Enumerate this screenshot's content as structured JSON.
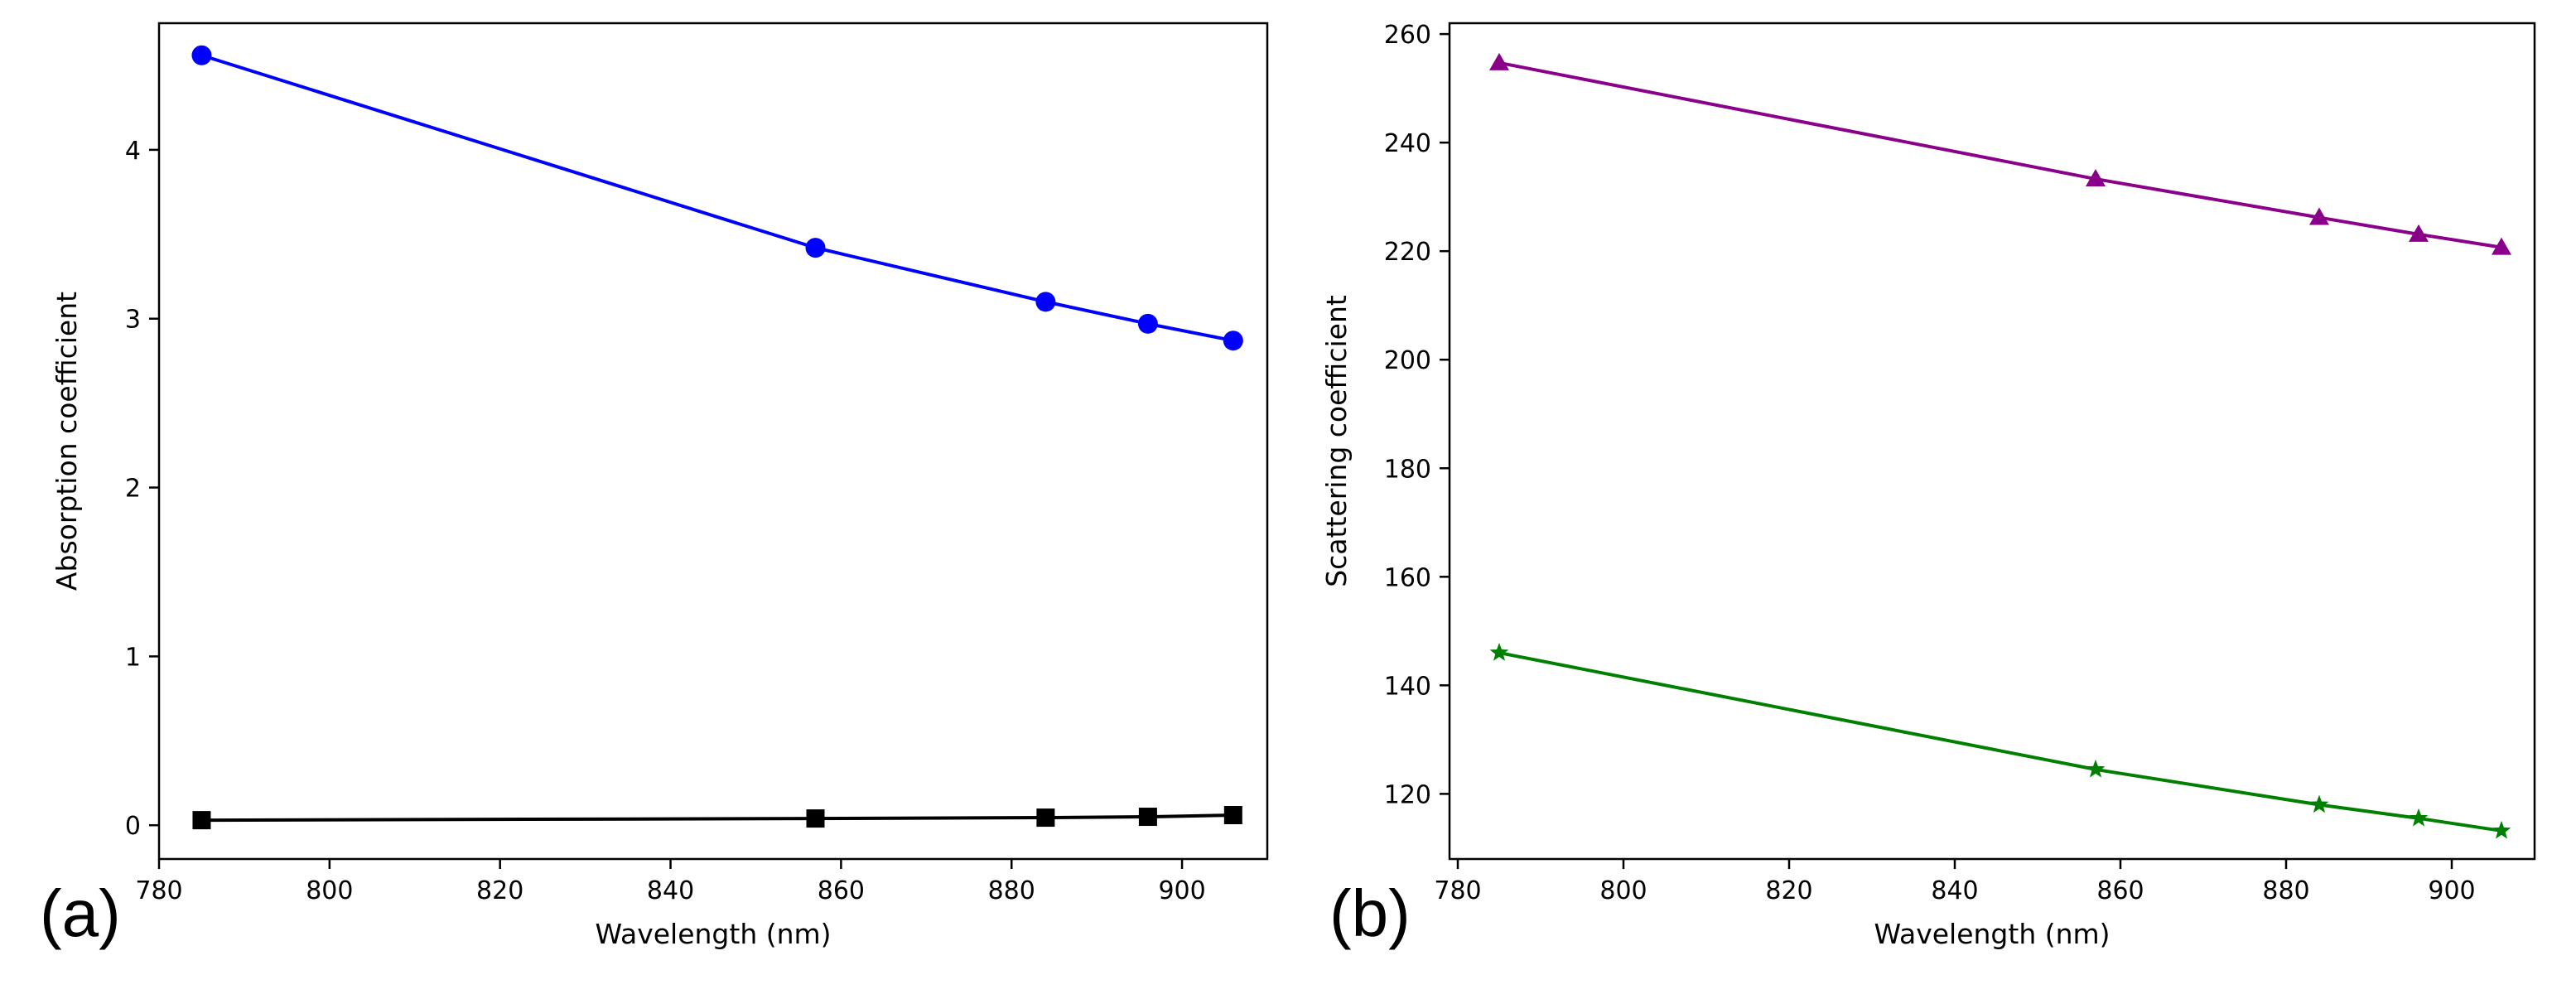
{
  "chart_data": [
    {
      "type": "line",
      "panel_label": "(a)",
      "title": "",
      "xlabel": "Wavelength (nm)",
      "ylabel": "Absorption coefficient",
      "xlim": [
        780,
        910
      ],
      "ylim": [
        -0.2,
        4.75
      ],
      "xticks": [
        780,
        800,
        820,
        840,
        860,
        880,
        900
      ],
      "yticks": [
        0,
        1,
        2,
        3,
        4
      ],
      "grid": false,
      "series": [
        {
          "name": "absorption-blue",
          "color": "#0000ff",
          "marker": "circle",
          "x": [
            785,
            857,
            884,
            896,
            906
          ],
          "y": [
            4.56,
            3.42,
            3.1,
            2.97,
            2.87
          ]
        },
        {
          "name": "absorption-black",
          "color": "#000000",
          "marker": "square",
          "x": [
            785,
            857,
            884,
            896,
            906
          ],
          "y": [
            0.03,
            0.04,
            0.045,
            0.05,
            0.06
          ]
        }
      ]
    },
    {
      "type": "line",
      "panel_label": "(b)",
      "title": "",
      "xlabel": "Wavelength (nm)",
      "ylabel": "Scattering coefficient",
      "xlim": [
        779,
        910
      ],
      "ylim": [
        108,
        262
      ],
      "xticks": [
        780,
        800,
        820,
        840,
        860,
        880,
        900
      ],
      "yticks": [
        120,
        140,
        160,
        180,
        200,
        220,
        240,
        260
      ],
      "grid": false,
      "series": [
        {
          "name": "scattering-purple",
          "color": "#8b008b",
          "marker": "triangle",
          "x": [
            785,
            857,
            884,
            896,
            906
          ],
          "y": [
            254.7,
            233.3,
            226.2,
            223.1,
            220.7
          ]
        },
        {
          "name": "scattering-green",
          "color": "#008000",
          "marker": "star",
          "x": [
            785,
            857,
            884,
            896,
            906
          ],
          "y": [
            146.0,
            124.5,
            118.0,
            115.5,
            113.2
          ]
        }
      ]
    }
  ]
}
